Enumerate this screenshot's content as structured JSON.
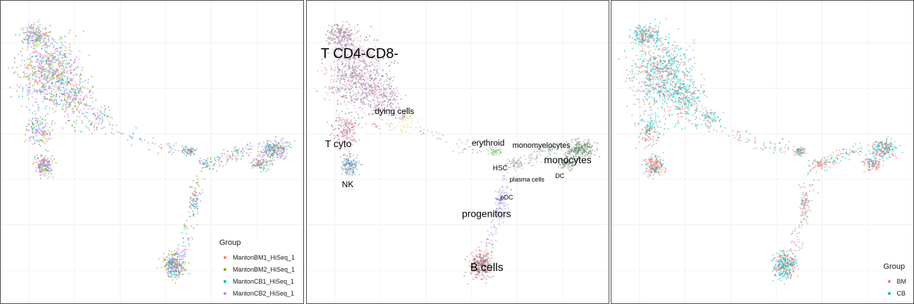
{
  "chart_data": [
    {
      "type": "scatter",
      "title": "",
      "xlabel": "",
      "ylabel": "",
      "grid": true,
      "legend": {
        "title": "Group",
        "position": "bottom-right",
        "entries": [
          {
            "label": "MantonBM1_HiSeq_1",
            "color": "#f8766d"
          },
          {
            "label": "MantonBM2_HiSeq_1",
            "color": "#7cae00"
          },
          {
            "label": "MantonCB1_HiSeq_1",
            "color": "#00bfc4"
          },
          {
            "label": "MantonCB2_HiSeq_1",
            "color": "#c77cff"
          }
        ]
      },
      "series": [
        {
          "name": "MantonBM1_HiSeq_1",
          "color": "#f8766d"
        },
        {
          "name": "MantonBM2_HiSeq_1",
          "color": "#7cae00"
        },
        {
          "name": "MantonCB1_HiSeq_1",
          "color": "#00bfc4"
        },
        {
          "name": "MantonCB2_HiSeq_1",
          "color": "#c77cff"
        }
      ]
    },
    {
      "type": "scatter",
      "title": "",
      "xlabel": "",
      "ylabel": "",
      "grid": true,
      "annotations": [
        {
          "text": "T CD4-CD8-",
          "size": "large"
        },
        {
          "text": "dying cells",
          "size": "medium"
        },
        {
          "text": "T cyto",
          "size": "medium-large"
        },
        {
          "text": "NK",
          "size": "medium"
        },
        {
          "text": "erythroid",
          "size": "medium"
        },
        {
          "text": "monomyelocytes",
          "size": "medium"
        },
        {
          "text": "monocytes",
          "size": "large"
        },
        {
          "text": "HSC",
          "size": "small"
        },
        {
          "text": "DC",
          "size": "small"
        },
        {
          "text": "plasma cells",
          "size": "small"
        },
        {
          "text": "pDC",
          "size": "small"
        },
        {
          "text": "progenitors",
          "size": "medium-large"
        },
        {
          "text": "B cells",
          "size": "large"
        }
      ]
    },
    {
      "type": "scatter",
      "title": "",
      "xlabel": "",
      "ylabel": "",
      "grid": true,
      "legend": {
        "title": "Group",
        "position": "bottom-right",
        "entries": [
          {
            "label": "BM",
            "color": "#f8766d"
          },
          {
            "label": "CB",
            "color": "#00bfc4"
          }
        ]
      },
      "series": [
        {
          "name": "BM",
          "color": "#f8766d"
        },
        {
          "name": "CB",
          "color": "#00bfc4"
        }
      ]
    }
  ]
}
